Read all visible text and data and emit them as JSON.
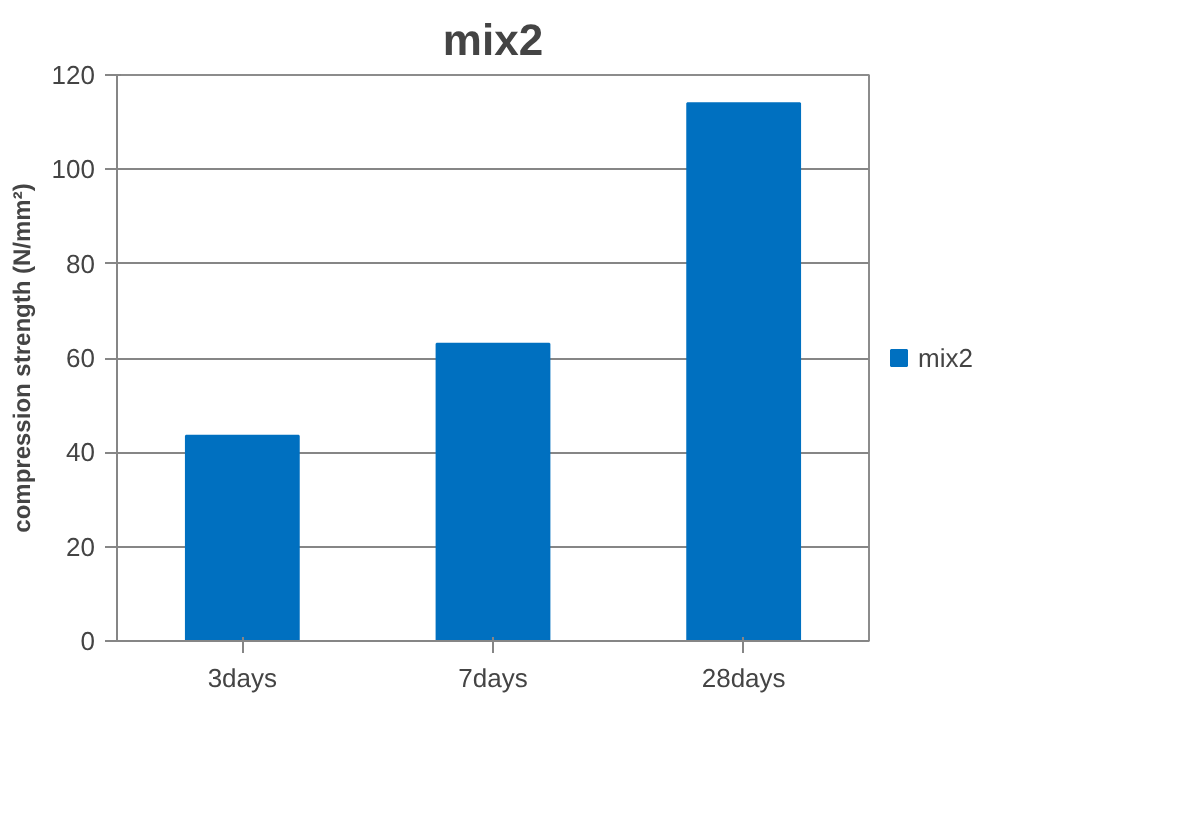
{
  "chart_data": {
    "type": "bar",
    "title": "mix2",
    "ylabel": "compression strength (N/mm²)",
    "categories": [
      "3days",
      "7days",
      "28days"
    ],
    "series": [
      {
        "name": "mix2",
        "color": "#0070c0",
        "values": [
          43.5,
          63,
          114
        ]
      }
    ],
    "ylim": [
      0,
      120
    ],
    "yticks": [
      0,
      20,
      40,
      60,
      80,
      100,
      120
    ],
    "grid": "y",
    "legend": "right"
  }
}
